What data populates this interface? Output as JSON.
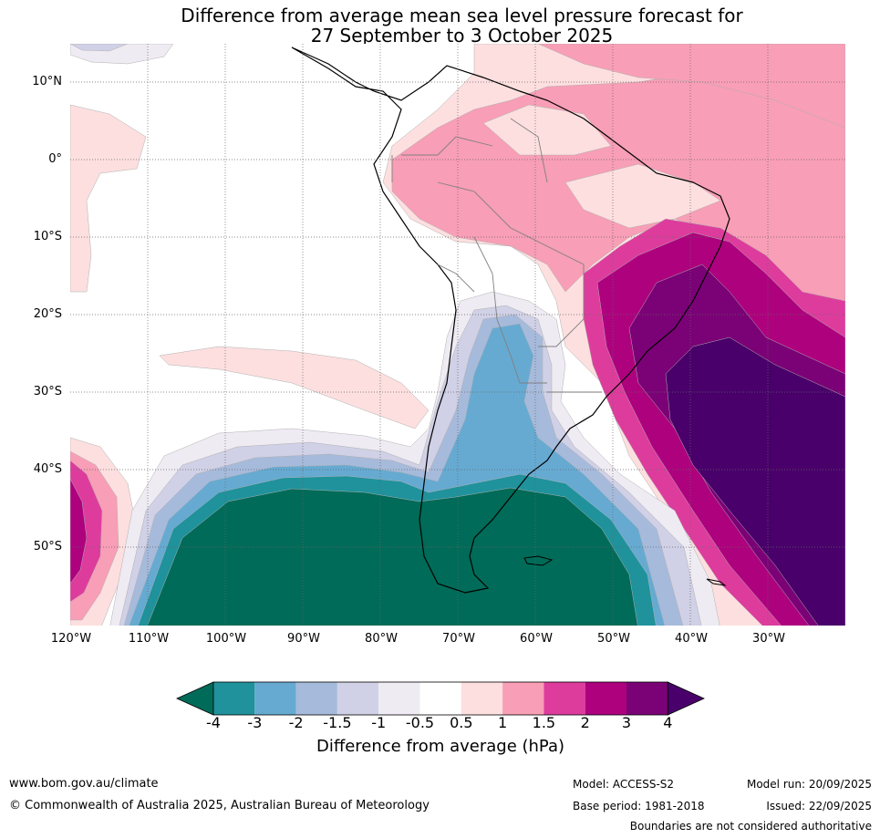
{
  "title": {
    "line1": "Difference from average mean sea level pressure forecast for",
    "line2": "27 September to 3 October 2025"
  },
  "map": {
    "region": "South America",
    "lat_labels": [
      "10°N",
      "0°",
      "10°S",
      "20°S",
      "30°S",
      "40°S",
      "50°S"
    ],
    "lon_labels": [
      "120°W",
      "110°W",
      "100°W",
      "90°W",
      "80°W",
      "70°W",
      "60°W",
      "50°W",
      "40°W",
      "30°W"
    ]
  },
  "colorbar": {
    "title": "Difference from average (hPa)",
    "labels": [
      "-4",
      "-3",
      "-2",
      "-1.5",
      "-1",
      "-0.5",
      "0.5",
      "1",
      "1.5",
      "2",
      "3",
      "4"
    ],
    "colors": {
      "below_min": "#006b58",
      "n4_n3": "#1f929c",
      "n3_n2": "#66aad2",
      "n2_n15": "#a6badb",
      "n15_n1": "#d0d0e6",
      "n1_n05": "#efebf3",
      "n05_p05": "#ffffff",
      "p05_p1": "#fddfdf",
      "p1_p15": "#f89eb6",
      "p15_p2": "#de3c9d",
      "p2_p3": "#ae017e",
      "p3_p4": "#7b0176",
      "above_max": "#49006a"
    }
  },
  "footer": {
    "website": "www.bom.gov.au/climate",
    "copyright": "© Commonwealth of Australia 2025, Australian Bureau of Meteorology",
    "model": "Model: ACCESS-S2",
    "base_period": "Base period: 1981-2018",
    "model_run": "Model run: 20/09/2025",
    "issued": "Issued: 22/09/2025",
    "disclaimer": "Boundaries are not considered authoritative"
  }
}
